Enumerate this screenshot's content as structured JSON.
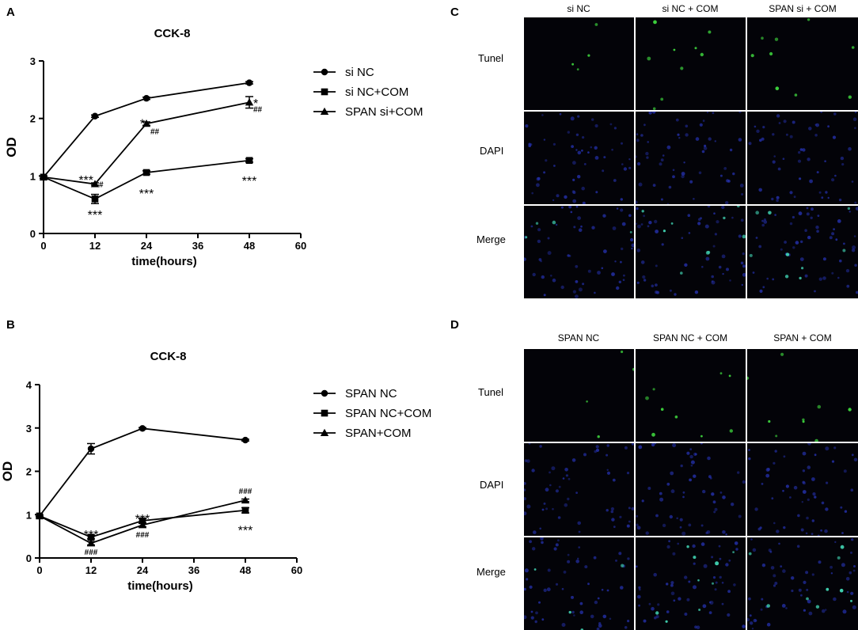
{
  "panels": {
    "a": "A",
    "b": "B",
    "c": "C",
    "d": "D"
  },
  "chart_data": [
    {
      "type": "line",
      "panel": "A",
      "title": "CCK-8",
      "xlabel": "time(hours)",
      "ylabel": "OD",
      "xlim": [
        0,
        60
      ],
      "ylim": [
        0,
        3
      ],
      "xticks": [
        0,
        12,
        24,
        36,
        48,
        60
      ],
      "yticks": [
        0,
        1,
        2,
        3
      ],
      "legend_position": "right",
      "grid": false,
      "x": [
        0,
        12,
        24,
        48
      ],
      "series": [
        {
          "name": "si NC",
          "marker": "circle",
          "values": [
            0.98,
            2.04,
            2.35,
            2.62
          ],
          "errors": [
            0.02,
            0.02,
            0.02,
            0.02
          ]
        },
        {
          "name": "si NC+COM",
          "marker": "square",
          "values": [
            0.98,
            0.6,
            1.06,
            1.27
          ],
          "errors": [
            0.02,
            0.08,
            0.03,
            0.03
          ]
        },
        {
          "name": "SPAN si+COM",
          "marker": "triangle",
          "values": [
            0.98,
            0.86,
            1.91,
            2.28
          ],
          "errors": [
            0.02,
            0.02,
            0.03,
            0.1
          ]
        }
      ],
      "annotations": [
        {
          "text": "***",
          "x": 12,
          "y": 0.98,
          "size": "big",
          "anchor": "end"
        },
        {
          "text": "#",
          "x": 12,
          "y": 0.86,
          "size": "small",
          "anchor": "start"
        },
        {
          "text": "***",
          "x": 12,
          "y": 0.37,
          "size": "big",
          "anchor": "middle"
        },
        {
          "text": "*",
          "x": 24,
          "y": 1.96,
          "size": "big",
          "anchor": "end"
        },
        {
          "text": "##",
          "x": 24,
          "y": 1.78,
          "size": "small",
          "anchor": "start"
        },
        {
          "text": "***",
          "x": 24,
          "y": 0.74,
          "size": "big",
          "anchor": "middle"
        },
        {
          "text": "*",
          "x": 48,
          "y": 2.31,
          "size": "big",
          "anchor": "start"
        },
        {
          "text": "##",
          "x": 48,
          "y": 2.17,
          "size": "small",
          "anchor": "start"
        },
        {
          "text": "***",
          "x": 48,
          "y": 0.96,
          "size": "big",
          "anchor": "middle"
        }
      ]
    },
    {
      "type": "line",
      "panel": "B",
      "title": "CCK-8",
      "xlabel": "time(hours)",
      "ylabel": "OD",
      "xlim": [
        0,
        60
      ],
      "ylim": [
        0,
        4
      ],
      "xticks": [
        0,
        12,
        24,
        36,
        48,
        60
      ],
      "yticks": [
        0,
        1,
        2,
        3,
        4
      ],
      "legend_position": "right",
      "grid": false,
      "x": [
        0,
        12,
        24,
        48
      ],
      "series": [
        {
          "name": "SPAN NC",
          "marker": "circle",
          "values": [
            0.97,
            2.52,
            2.99,
            2.72
          ],
          "errors": [
            0.02,
            0.12,
            0.02,
            0.02
          ]
        },
        {
          "name": "SPAN NC+COM",
          "marker": "square",
          "values": [
            0.97,
            0.48,
            0.86,
            1.1
          ],
          "errors": [
            0.02,
            0.04,
            0.05,
            0.06
          ]
        },
        {
          "name": "SPAN+COM",
          "marker": "triangle",
          "values": [
            0.97,
            0.34,
            0.76,
            1.33
          ],
          "errors": [
            0.02,
            0.04,
            0.04,
            0.03
          ]
        }
      ],
      "annotations": [
        {
          "text": "***",
          "x": 12,
          "y": 0.6,
          "size": "big",
          "anchor": "middle"
        },
        {
          "text": "###",
          "x": 12,
          "y": 0.15,
          "size": "small",
          "anchor": "middle"
        },
        {
          "text": "***",
          "x": 24,
          "y": 0.97,
          "size": "big",
          "anchor": "middle"
        },
        {
          "text": "###",
          "x": 24,
          "y": 0.55,
          "size": "small",
          "anchor": "middle"
        },
        {
          "text": "###",
          "x": 48,
          "y": 1.55,
          "size": "small",
          "anchor": "middle"
        },
        {
          "text": "***",
          "x": 48,
          "y": 0.7,
          "size": "big",
          "anchor": "middle"
        }
      ]
    }
  ],
  "micrographs": {
    "c": {
      "columns": [
        "si NC",
        "si NC + COM",
        "SPAN si + COM"
      ],
      "rows": [
        "Tunel",
        "DAPI",
        "Merge"
      ]
    },
    "d": {
      "columns": [
        "SPAN NC",
        "SPAN NC + COM",
        "SPAN + COM"
      ],
      "rows": [
        "Tunel",
        "DAPI",
        "Merge"
      ]
    }
  },
  "colors": {
    "ink": "#000000",
    "tile_background": "#030308",
    "tunel_dot": "#3ccf3c",
    "dapi_dot": "#2430a8",
    "merge_dot": "#40d0b0",
    "divider": "#ffffff"
  }
}
